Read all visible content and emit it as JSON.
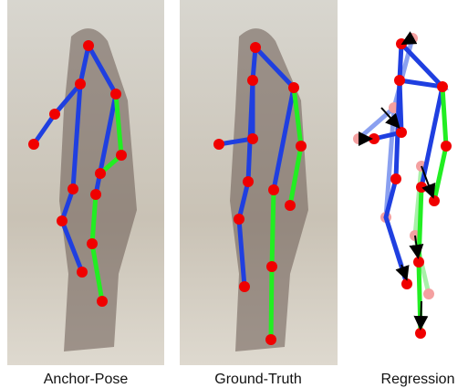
{
  "panels": [
    {
      "caption": "Anchor-Pose"
    },
    {
      "caption": "Ground-Truth"
    },
    {
      "caption": "Regression"
    }
  ]
}
